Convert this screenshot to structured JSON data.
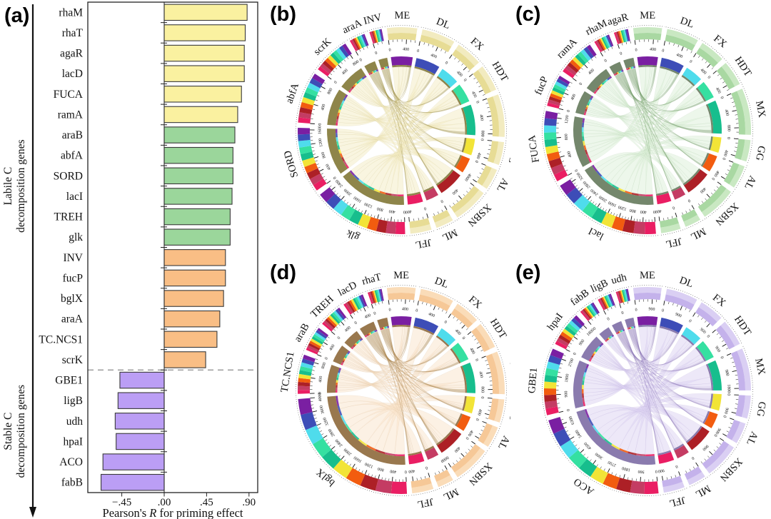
{
  "panel_labels": {
    "a": "(a)",
    "b": "(b)",
    "c": "(c)",
    "d": "(d)",
    "e": "(e)"
  },
  "site_colors": {
    "ME": "#7A1FA2",
    "DL": "#3D4DB7",
    "FX": "#4FDCEC",
    "HDT": "#35E0A1",
    "MX": "#17BE8D",
    "GG": "#F2E437",
    "AL": "#F25C0F",
    "XSBN": "#AD2026",
    "ML": "#C43C63",
    "JFL": "#EA1E63"
  },
  "chart_data": [
    {
      "type": "bar",
      "panel": "a",
      "orientation": "horizontal",
      "xlabel_parts": [
        "Pearson's ",
        "R",
        " for priming effect"
      ],
      "xticks": [
        {
          "v": -0.45,
          "label": "−.45"
        },
        {
          "v": 0,
          "label": ".00"
        },
        {
          "v": 0.45,
          "label": ".45"
        },
        {
          "v": 0.9,
          "label": ".90"
        }
      ],
      "xlim": [
        -0.81,
        0.99
      ],
      "group_label_lines": {
        "labile": [
          "Labile C",
          "decomposition genes"
        ],
        "stable": [
          "Stable C",
          "decomposition genes"
        ]
      },
      "bar_colors": {
        "yellow": "#FAF1A0",
        "green": "#9BD69B",
        "orange": "#F9BE85",
        "purple": "#BB9EF5"
      },
      "bars": [
        {
          "gene": "rhaM",
          "value": 0.88,
          "group": "yellow"
        },
        {
          "gene": "rhaT",
          "value": 0.86,
          "group": "yellow"
        },
        {
          "gene": "agaR",
          "value": 0.85,
          "group": "yellow"
        },
        {
          "gene": "lacD",
          "value": 0.85,
          "group": "yellow"
        },
        {
          "gene": "FUCA",
          "value": 0.82,
          "group": "yellow"
        },
        {
          "gene": "ramA",
          "value": 0.78,
          "group": "yellow"
        },
        {
          "gene": "araB",
          "value": 0.75,
          "group": "green"
        },
        {
          "gene": "abfA",
          "value": 0.73,
          "group": "green"
        },
        {
          "gene": "SORD",
          "value": 0.73,
          "group": "green"
        },
        {
          "gene": "lacI",
          "value": 0.72,
          "group": "green"
        },
        {
          "gene": "TREH",
          "value": 0.7,
          "group": "green"
        },
        {
          "gene": "glk",
          "value": 0.7,
          "group": "green"
        },
        {
          "gene": "INV",
          "value": 0.65,
          "group": "orange"
        },
        {
          "gene": "fucP",
          "value": 0.65,
          "group": "orange"
        },
        {
          "gene": "bglX",
          "value": 0.63,
          "group": "orange"
        },
        {
          "gene": "araA",
          "value": 0.59,
          "group": "orange"
        },
        {
          "gene": "TC.NCS1",
          "value": 0.56,
          "group": "orange"
        },
        {
          "gene": "scrK",
          "value": 0.44,
          "group": "orange"
        },
        {
          "gene": "GBE1",
          "value": -0.47,
          "group": "purple"
        },
        {
          "gene": "ligB",
          "value": -0.49,
          "group": "purple"
        },
        {
          "gene": "udh",
          "value": -0.52,
          "group": "purple"
        },
        {
          "gene": "hpaI",
          "value": -0.51,
          "group": "purple"
        },
        {
          "gene": "ACO",
          "value": -0.65,
          "group": "purple"
        },
        {
          "gene": "fabB",
          "value": -0.67,
          "group": "purple"
        }
      ]
    },
    {
      "type": "chord",
      "panel": "b",
      "tick_step": 400,
      "theme": {
        "chord": "#F3ECC3",
        "chord_dark": "#A79A55",
        "band": "#E7DC95",
        "band_light": "#F2EBC0",
        "inner": "#8E854A"
      },
      "sites": [
        {
          "name": "ME",
          "deg": 17,
          "max": 600
        },
        {
          "name": "DL",
          "deg": 19,
          "max": 650
        },
        {
          "name": "FX",
          "deg": 15,
          "max": 500
        },
        {
          "name": "HDT",
          "deg": 15,
          "max": 500
        },
        {
          "name": "MX",
          "deg": 24,
          "max": 850
        },
        {
          "name": "GG",
          "deg": 13,
          "max": 450
        },
        {
          "name": "AL",
          "deg": 12,
          "max": 400
        },
        {
          "name": "XSBN",
          "deg": 20,
          "max": 700
        },
        {
          "name": "ML",
          "deg": 10,
          "max": 350
        },
        {
          "name": "JFL",
          "deg": 12,
          "max": 400
        }
      ],
      "genes": [
        {
          "name": "glk",
          "deg": 54,
          "max": 2500
        },
        {
          "name": "SORD",
          "deg": 37,
          "max": 1650
        },
        {
          "name": "abfA",
          "deg": 29,
          "max": 950
        },
        {
          "name": "scrK",
          "deg": 21,
          "max": 850
        },
        {
          "name": "araA",
          "deg": 9,
          "max": 350
        },
        {
          "name": "INV",
          "deg": 7,
          "max": 250
        }
      ]
    },
    {
      "type": "chord",
      "panel": "c",
      "tick_step": 400,
      "theme": {
        "chord": "#DDF0D8",
        "chord_dark": "#7BA06F",
        "band": "#A9D8A2",
        "band_light": "#C9E8C2",
        "inner": "#74876C"
      },
      "sites": [
        {
          "name": "ME",
          "deg": 16,
          "max": 550
        },
        {
          "name": "DL",
          "deg": 18,
          "max": 600
        },
        {
          "name": "FX",
          "deg": 14,
          "max": 500
        },
        {
          "name": "HDT",
          "deg": 14,
          "max": 500
        },
        {
          "name": "MX",
          "deg": 26,
          "max": 950
        },
        {
          "name": "GG",
          "deg": 12,
          "max": 450
        },
        {
          "name": "AL",
          "deg": 13,
          "max": 450
        },
        {
          "name": "XSBN",
          "deg": 20,
          "max": 750
        },
        {
          "name": "ML",
          "deg": 9,
          "max": 350
        },
        {
          "name": "JFL",
          "deg": 11,
          "max": 400
        }
      ],
      "genes": [
        {
          "name": "lacI",
          "deg": 62,
          "max": 3300
        },
        {
          "name": "FUCA",
          "deg": 40,
          "max": 1300
        },
        {
          "name": "fucP",
          "deg": 18,
          "max": 700
        },
        {
          "name": "ramA",
          "deg": 21,
          "max": 750
        },
        {
          "name": "rhaM",
          "deg": 9,
          "max": 350
        },
        {
          "name": "agaR",
          "deg": 8,
          "max": 300
        }
      ]
    },
    {
      "type": "chord",
      "panel": "d",
      "tick_step": 400,
      "theme": {
        "chord": "#FAE4CB",
        "chord_dark": "#AE8A52",
        "band": "#F6C897",
        "band_light": "#FADCB8",
        "inner": "#99784E"
      },
      "sites": [
        {
          "name": "ME",
          "deg": 16,
          "max": 600
        },
        {
          "name": "DL",
          "deg": 19,
          "max": 700
        },
        {
          "name": "FX",
          "deg": 14,
          "max": 500
        },
        {
          "name": "HDT",
          "deg": 15,
          "max": 550
        },
        {
          "name": "MX",
          "deg": 24,
          "max": 900
        },
        {
          "name": "GG",
          "deg": 13,
          "max": 500
        },
        {
          "name": "AL",
          "deg": 12,
          "max": 450
        },
        {
          "name": "XSBN",
          "deg": 21,
          "max": 800
        },
        {
          "name": "ML",
          "deg": 9,
          "max": 350
        },
        {
          "name": "JFL",
          "deg": 12,
          "max": 450
        }
      ],
      "genes": [
        {
          "name": "bglX",
          "deg": 88,
          "max": 4000
        },
        {
          "name": "TC.NCS1",
          "deg": 22,
          "max": 900
        },
        {
          "name": "araB",
          "deg": 14,
          "max": 650
        },
        {
          "name": "TREH",
          "deg": 13,
          "max": 600
        },
        {
          "name": "lacD",
          "deg": 12,
          "max": 500
        },
        {
          "name": "rhaT",
          "deg": 8,
          "max": 350
        }
      ]
    },
    {
      "type": "chord",
      "panel": "e",
      "tick_step": 900,
      "theme": {
        "chord": "#DDD3F1",
        "chord_dark": "#8E7BB8",
        "band": "#C4B2EB",
        "band_light": "#DACFF3",
        "inner": "#8A7BAE"
      },
      "sites": [
        {
          "name": "ME",
          "deg": 16,
          "max": 1300
        },
        {
          "name": "DL",
          "deg": 18,
          "max": 1400
        },
        {
          "name": "FX",
          "deg": 14,
          "max": 1100
        },
        {
          "name": "HDT",
          "deg": 15,
          "max": 1200
        },
        {
          "name": "MX",
          "deg": 24,
          "max": 1900
        },
        {
          "name": "GG",
          "deg": 13,
          "max": 1000
        },
        {
          "name": "AL",
          "deg": 12,
          "max": 950
        },
        {
          "name": "XSBN",
          "deg": 20,
          "max": 1600
        },
        {
          "name": "ML",
          "deg": 10,
          "max": 800
        },
        {
          "name": "JFL",
          "deg": 12,
          "max": 950
        }
      ],
      "genes": [
        {
          "name": "ACO",
          "deg": 80,
          "max": 6700
        },
        {
          "name": "GBE1",
          "deg": 38,
          "max": 3000
        },
        {
          "name": "hpaI",
          "deg": 20,
          "max": 1900
        },
        {
          "name": "fabB",
          "deg": 9,
          "max": 800
        },
        {
          "name": "ligB",
          "deg": 8,
          "max": 700
        },
        {
          "name": "udh",
          "deg": 7,
          "max": 600
        }
      ]
    }
  ]
}
